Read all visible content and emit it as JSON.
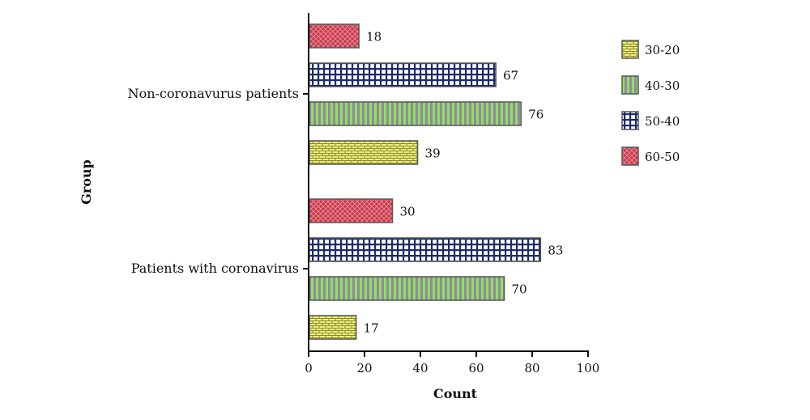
{
  "chart_data": {
    "type": "bar",
    "orientation": "horizontal",
    "categories": [
      "Non-coronavurus patients",
      "Patients with coronavirus"
    ],
    "series": [
      {
        "name": "30-20",
        "values": [
          39,
          17
        ],
        "color": "#eef07a",
        "pattern": "brick"
      },
      {
        "name": "40-30",
        "values": [
          76,
          70
        ],
        "color": "#86e84a",
        "pattern": "vertical-stripes"
      },
      {
        "name": "50-40",
        "values": [
          67,
          83
        ],
        "color": "#1c2a6e",
        "pattern": "grid"
      },
      {
        "name": "60-50",
        "values": [
          18,
          30
        ],
        "color": "#c8374a",
        "pattern": "crosshatch"
      }
    ],
    "data_labels": true,
    "xlabel": "Count",
    "ylabel": "Group",
    "xlim": [
      0,
      100
    ],
    "xticks": [
      0,
      20,
      40,
      60,
      80,
      100
    ],
    "legend_position": "right",
    "grid": false
  }
}
